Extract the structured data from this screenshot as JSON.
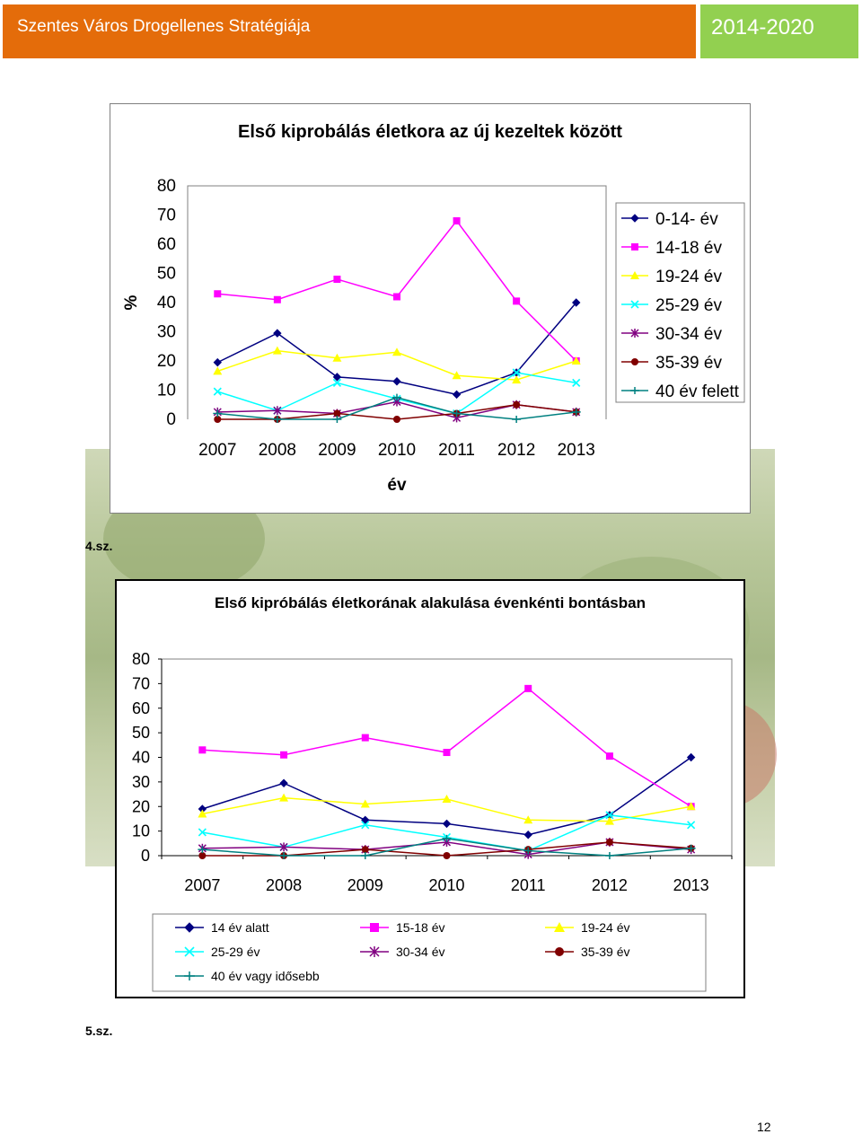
{
  "header": {
    "title": "Szentes Város Drogellenes Stratégiája",
    "years": "2014-2020"
  },
  "caption1": "4.sz.",
  "caption2": "5.sz.",
  "page_number": "12",
  "chart_data": [
    {
      "type": "line",
      "title": "Első kiprobálás életkora az új kezeltek között",
      "xlabel": "év",
      "ylabel": "%",
      "x": [
        "2007",
        "2008",
        "2009",
        "2010",
        "2011",
        "2012",
        "2013"
      ],
      "yticks": [
        "0",
        "10",
        "20",
        "30",
        "40",
        "50",
        "60",
        "70",
        "80"
      ],
      "ylim": [
        0,
        80
      ],
      "legend_position": "right",
      "grid": false,
      "series": [
        {
          "name": "0-14- év",
          "values": [
            19.5,
            29.5,
            14.5,
            13,
            8.5,
            16,
            40
          ],
          "color": "#000080",
          "marker": "diamond"
        },
        {
          "name": "14-18 év",
          "values": [
            43,
            41,
            48,
            42,
            68,
            40.5,
            20
          ],
          "color": "#ff00ff",
          "marker": "square"
        },
        {
          "name": "19-24 év",
          "values": [
            16.5,
            23.5,
            21,
            23,
            15,
            13.5,
            20
          ],
          "color": "#ffff00",
          "marker": "triangle"
        },
        {
          "name": "25-29 év",
          "values": [
            9.5,
            3,
            12.5,
            7,
            2,
            16,
            12.5
          ],
          "color": "#00ffff",
          "marker": "x"
        },
        {
          "name": "30-34 év",
          "values": [
            2.5,
            3,
            2,
            6,
            0.5,
            5,
            2.5
          ],
          "color": "#800080",
          "marker": "star"
        },
        {
          "name": "35-39 év",
          "values": [
            0,
            0,
            2,
            0,
            2,
            5,
            2.5
          ],
          "color": "#800000",
          "marker": "circle"
        },
        {
          "name": "40 év felett",
          "values": [
            2,
            0,
            0,
            7.5,
            2,
            0,
            2.5
          ],
          "color": "#008080",
          "marker": "plus"
        }
      ]
    },
    {
      "type": "line",
      "title": "Első kipróbálás életkorának alakulása évenkénti bontásban",
      "x": [
        "2007",
        "2008",
        "2009",
        "2010",
        "2011",
        "2012",
        "2013"
      ],
      "yticks": [
        "0",
        "10",
        "20",
        "30",
        "40",
        "50",
        "60",
        "70",
        "80"
      ],
      "ylim": [
        0,
        80
      ],
      "legend_position": "bottom",
      "grid": false,
      "series": [
        {
          "name": "14 év alatt",
          "values": [
            19,
            29.5,
            14.5,
            13,
            8.5,
            16.5,
            40
          ],
          "color": "#000080",
          "marker": "diamond"
        },
        {
          "name": "15-18 év",
          "values": [
            43,
            41,
            48,
            42,
            68,
            40.5,
            20
          ],
          "color": "#ff00ff",
          "marker": "square"
        },
        {
          "name": "19-24 év",
          "values": [
            17,
            23.5,
            21,
            23,
            14.5,
            14,
            20
          ],
          "color": "#ffff00",
          "marker": "triangle"
        },
        {
          "name": "25-29 év",
          "values": [
            9.5,
            3.5,
            12.5,
            7.5,
            2,
            16.5,
            12.5
          ],
          "color": "#00ffff",
          "marker": "x"
        },
        {
          "name": "30-34 év",
          "values": [
            3,
            3.5,
            2.5,
            5.5,
            0.5,
            5.5,
            2.5
          ],
          "color": "#800080",
          "marker": "star"
        },
        {
          "name": "35-39 év",
          "values": [
            0,
            0,
            2.5,
            0,
            2.5,
            5.5,
            3
          ],
          "color": "#800000",
          "marker": "circle"
        },
        {
          "name": "40 év vagy idősebb",
          "values": [
            2.5,
            0,
            0,
            7,
            2,
            0,
            3
          ],
          "color": "#008080",
          "marker": "plus"
        }
      ]
    }
  ]
}
